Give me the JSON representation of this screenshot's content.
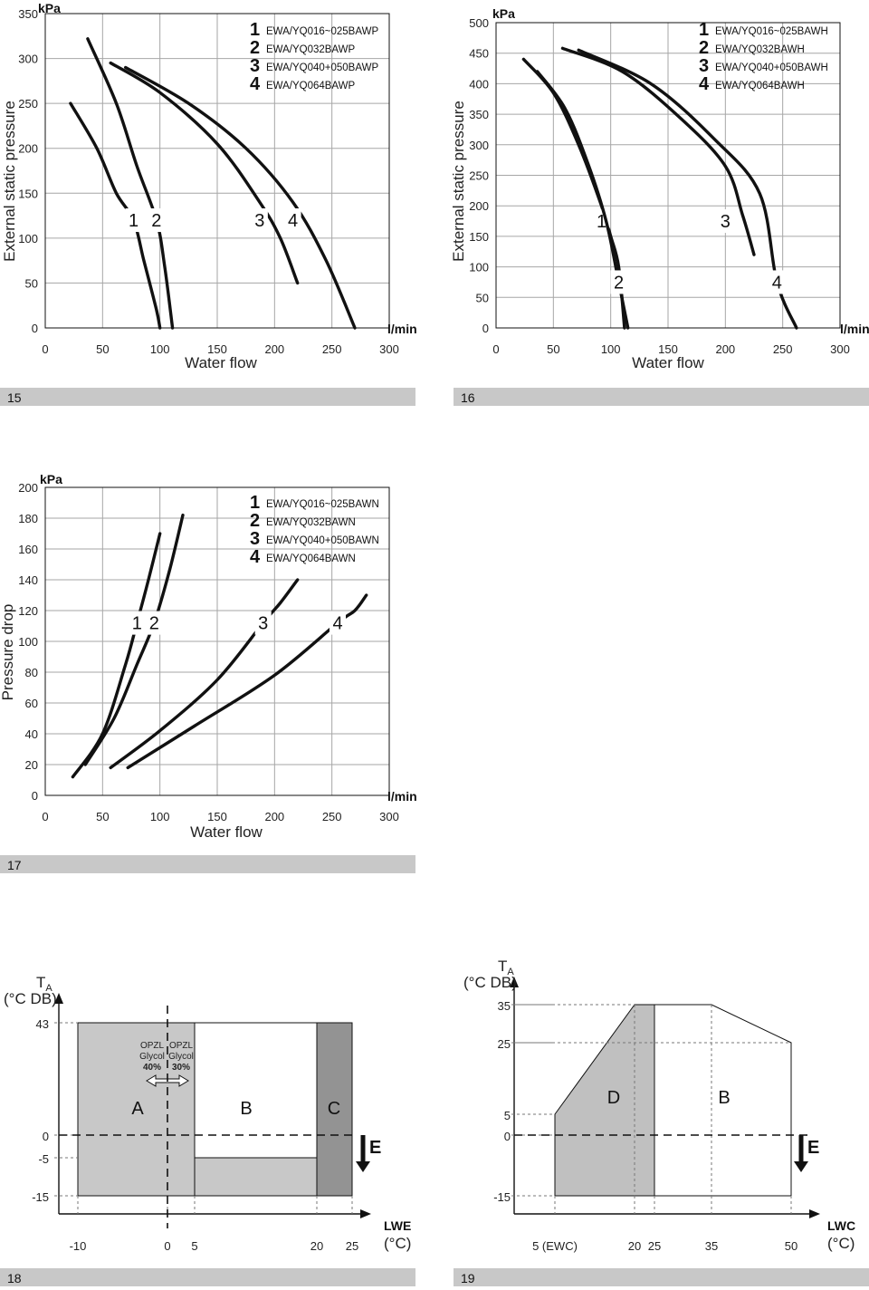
{
  "chart_data": [
    {
      "id": "15",
      "type": "line",
      "ylabel": "External static pressure",
      "ylabel_unit": "kPa",
      "xlabel": "Water flow",
      "xlabel_unit": "l/min",
      "xlim": [
        0,
        300
      ],
      "ylim": [
        0,
        350
      ],
      "xticks": [
        "0",
        "50",
        "100",
        "150",
        "200",
        "250",
        "300"
      ],
      "yticks": [
        "0",
        "50",
        "100",
        "150",
        "200",
        "250",
        "300",
        "350"
      ],
      "grid": true,
      "legend": [
        {
          "num": "1",
          "label": "EWA/YQ016~025BAWP"
        },
        {
          "num": "2",
          "label": "EWA/YQ032BAWP"
        },
        {
          "num": "3",
          "label": "EWA/YQ040+050BAWP"
        },
        {
          "num": "4",
          "label": "EWA/YQ064BAWP"
        }
      ],
      "series": [
        {
          "name": "1",
          "label_at": [
            77,
            120
          ],
          "points": [
            [
              22,
              250
            ],
            [
              45,
              200
            ],
            [
              62,
              150
            ],
            [
              77,
              120
            ],
            [
              86,
              75
            ],
            [
              97,
              20
            ],
            [
              100,
              0
            ]
          ]
        },
        {
          "name": "2",
          "label_at": [
            97,
            120
          ],
          "points": [
            [
              37,
              322
            ],
            [
              62,
              250
            ],
            [
              80,
              180
            ],
            [
              97,
              120
            ],
            [
              104,
              70
            ],
            [
              111,
              0
            ]
          ]
        },
        {
          "name": "3",
          "label_at": [
            187,
            120
          ],
          "points": [
            [
              57,
              295
            ],
            [
              100,
              262
            ],
            [
              150,
              205
            ],
            [
              187,
              140
            ],
            [
              205,
              100
            ],
            [
              220,
              50
            ]
          ]
        },
        {
          "name": "4",
          "label_at": [
            216,
            120
          ],
          "points": [
            [
              70,
              290
            ],
            [
              125,
              250
            ],
            [
              175,
              200
            ],
            [
              216,
              140
            ],
            [
              245,
              75
            ],
            [
              270,
              0
            ]
          ]
        }
      ]
    },
    {
      "id": "16",
      "type": "line",
      "ylabel": "External static pressure",
      "ylabel_unit": "kPa",
      "xlabel": "Water flow",
      "xlabel_unit": "l/min",
      "xlim": [
        0,
        300
      ],
      "ylim": [
        0,
        500
      ],
      "xticks": [
        "0",
        "50",
        "100",
        "150",
        "200",
        "250",
        "300"
      ],
      "yticks": [
        "50",
        "100",
        "150",
        "200",
        "250",
        "300",
        "350",
        "400",
        "450",
        "500"
      ],
      "ytick_values": [
        50,
        100,
        150,
        200,
        250,
        300,
        350,
        400,
        450,
        500
      ],
      "zero_label": "0",
      "grid": true,
      "legend": [
        {
          "num": "1",
          "label": "EWA/YQ016~025BAWH"
        },
        {
          "num": "2",
          "label": "EWA/YQ032BAWH"
        },
        {
          "num": "3",
          "label": "EWA/YQ040+050BAWH"
        },
        {
          "num": "4",
          "label": "EWA/YQ064BAWH"
        }
      ],
      "series": [
        {
          "name": "1",
          "label_at": [
            92,
            175
          ],
          "points": [
            [
              24,
              440
            ],
            [
              50,
              385
            ],
            [
              72,
              300
            ],
            [
              92,
              200
            ],
            [
              100,
              150
            ],
            [
              107,
              100
            ],
            [
              112,
              0
            ]
          ]
        },
        {
          "name": "2",
          "label_at": [
            107,
            75
          ],
          "points": [
            [
              36,
              420
            ],
            [
              60,
              360
            ],
            [
              80,
              270
            ],
            [
              96,
              175
            ],
            [
              107,
              75
            ],
            [
              115,
              0
            ]
          ]
        },
        {
          "name": "3",
          "label_at": [
            200,
            175
          ],
          "points": [
            [
              58,
              458
            ],
            [
              110,
              420
            ],
            [
              160,
              345
            ],
            [
              200,
              265
            ],
            [
              215,
              185
            ],
            [
              225,
              120
            ]
          ]
        },
        {
          "name": "4",
          "label_at": [
            245,
            75
          ],
          "points": [
            [
              72,
              455
            ],
            [
              135,
              400
            ],
            [
              190,
              310
            ],
            [
              230,
              220
            ],
            [
              245,
              75
            ],
            [
              262,
              0
            ]
          ]
        }
      ]
    },
    {
      "id": "17",
      "type": "line",
      "ylabel": "Pressure drop",
      "ylabel_unit": "kPa",
      "xlabel": "Water flow",
      "xlabel_unit": "l/min",
      "xlim": [
        0,
        300
      ],
      "ylim": [
        0,
        200
      ],
      "xticks": [
        "0",
        "50",
        "100",
        "150",
        "200",
        "250",
        "300"
      ],
      "yticks": [
        "0",
        "20",
        "40",
        "60",
        "80",
        "100",
        "120",
        "140",
        "160",
        "180",
        "200"
      ],
      "grid": true,
      "legend": [
        {
          "num": "1",
          "label": "EWA/YQ016~025BAWN"
        },
        {
          "num": "2",
          "label": "EWA/YQ032BAWN"
        },
        {
          "num": "3",
          "label": "EWA/YQ040+050BAWN"
        },
        {
          "num": "4",
          "label": "EWA/YQ064BAWN"
        }
      ],
      "series": [
        {
          "name": "1",
          "label_at": [
            80,
            112
          ],
          "points": [
            [
              24,
              12
            ],
            [
              50,
              40
            ],
            [
              70,
              85
            ],
            [
              80,
              112
            ],
            [
              90,
              140
            ],
            [
              100,
              170
            ]
          ]
        },
        {
          "name": "2",
          "label_at": [
            95,
            112
          ],
          "points": [
            [
              35,
              20
            ],
            [
              60,
              50
            ],
            [
              80,
              85
            ],
            [
              95,
              112
            ],
            [
              108,
              145
            ],
            [
              120,
              182
            ]
          ]
        },
        {
          "name": "3",
          "label_at": [
            190,
            112
          ],
          "points": [
            [
              57,
              18
            ],
            [
              100,
              42
            ],
            [
              150,
              75
            ],
            [
              190,
              112
            ],
            [
              205,
              125
            ],
            [
              220,
              140
            ]
          ]
        },
        {
          "name": "4",
          "label_at": [
            255,
            112
          ],
          "points": [
            [
              72,
              18
            ],
            [
              130,
              45
            ],
            [
              200,
              78
            ],
            [
              255,
              112
            ],
            [
              270,
              120
            ],
            [
              280,
              130
            ]
          ]
        }
      ]
    },
    {
      "id": "18",
      "type": "area",
      "ylabel": "TA",
      "ylabel_sub": "A",
      "ylabel_unit": "(°C DB)",
      "xlabel": "LWE",
      "xlabel_unit": "(°C)",
      "yticks": [
        "43",
        "0",
        "-5",
        "-15"
      ],
      "ytick_values": [
        43,
        0,
        -5,
        -15
      ],
      "xticks": [
        "-10",
        "0",
        "5",
        "20",
        "25"
      ],
      "xtick_values": [
        -10,
        0,
        5,
        20,
        25
      ],
      "regions": [
        {
          "name": "A",
          "points": [
            [
              -10,
              -15
            ],
            [
              -10,
              43
            ],
            [
              5,
              43
            ],
            [
              5,
              -15
            ]
          ]
        },
        {
          "name": "B",
          "points": [
            [
              5,
              -5
            ],
            [
              5,
              43
            ],
            [
              20,
              43
            ],
            [
              20,
              -5
            ]
          ]
        },
        {
          "name": "C",
          "points": [
            [
              20,
              -15
            ],
            [
              20,
              43
            ],
            [
              25,
              43
            ],
            [
              25,
              -15
            ]
          ]
        }
      ],
      "band": {
        "points": [
          [
            5,
            -15
          ],
          [
            5,
            -5
          ],
          [
            20,
            -5
          ],
          [
            20,
            -15
          ]
        ]
      },
      "opzl": [
        {
          "line1": "OPZL",
          "line2": "Glycol",
          "line3": "40%"
        },
        {
          "line1": "OPZL",
          "line2": "Glycol",
          "line3": "30%"
        }
      ],
      "arrow_label": "E"
    },
    {
      "id": "19",
      "type": "area",
      "ylabel": "TA",
      "ylabel_sub": "A",
      "ylabel_unit": "(°C DB)",
      "xlabel": "LWC",
      "xlabel_unit": "(°C)",
      "yticks": [
        "35",
        "25",
        "5",
        "0",
        "-15"
      ],
      "ytick_values": [
        35,
        25,
        5,
        0,
        -15
      ],
      "xticks": [
        "5 (EWC)",
        "20",
        "25",
        "35",
        "50"
      ],
      "xtick_values": [
        5,
        20,
        25,
        35,
        50
      ],
      "regions": [
        {
          "name": "D",
          "points": [
            [
              5,
              -15
            ],
            [
              5,
              5
            ],
            [
              20,
              35
            ],
            [
              25,
              35
            ],
            [
              25,
              -15
            ]
          ]
        },
        {
          "name": "B",
          "points": [
            [
              25,
              -15
            ],
            [
              25,
              35
            ],
            [
              35,
              35
            ],
            [
              50,
              25
            ],
            [
              50,
              -15
            ]
          ]
        }
      ],
      "arrow_label": "E"
    }
  ],
  "figure_numbers": [
    "15",
    "16",
    "17",
    "18",
    "19"
  ],
  "colors": {
    "grid": "#a6a6a6",
    "band": "#c8c8c8",
    "region_a": "#c8c8c8",
    "region_b": "#ffffff",
    "region_c": "#939393",
    "region_d": "#c0c0c0"
  }
}
